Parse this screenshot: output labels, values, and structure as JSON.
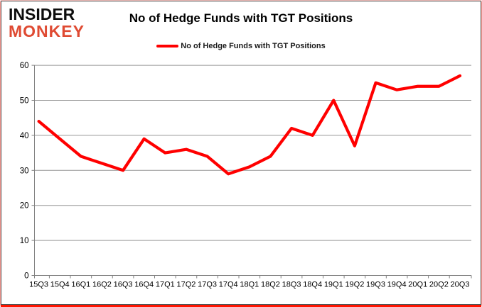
{
  "logo": {
    "line1": "INSIDER",
    "line2": "MONKEY"
  },
  "header": {
    "title": "No of Hedge Funds with TGT Positions"
  },
  "legend": {
    "label": "No of Hedge Funds with TGT Positions"
  },
  "colors": {
    "line": "#ff0000",
    "monkey_red": "#df4a32",
    "grid": "#969696",
    "axis": "#808080",
    "tick_text": "#000000"
  },
  "chart_data": {
    "type": "line",
    "title": "No of Hedge Funds with TGT Positions",
    "series": [
      {
        "name": "No of Hedge Funds with TGT Positions",
        "values": [
          44,
          39,
          34,
          32,
          30,
          39,
          35,
          36,
          34,
          29,
          31,
          34,
          42,
          40,
          50,
          37,
          55,
          53,
          54,
          54,
          57
        ]
      }
    ],
    "categories": [
      "15Q3",
      "15Q4",
      "16Q1",
      "16Q2",
      "16Q3",
      "16Q4",
      "17Q1",
      "17Q2",
      "17Q3",
      "17Q4",
      "18Q1",
      "18Q2",
      "18Q3",
      "18Q4",
      "19Q1",
      "19Q2",
      "19Q3",
      "19Q4",
      "20Q1",
      "20Q2",
      "20Q3"
    ],
    "xlabel": "",
    "ylabel": "",
    "ylim": [
      0,
      60
    ],
    "yticks": [
      0,
      10,
      20,
      30,
      40,
      50,
      60
    ],
    "grid": true,
    "legend_position": "top",
    "line_color": "#ff0000"
  }
}
